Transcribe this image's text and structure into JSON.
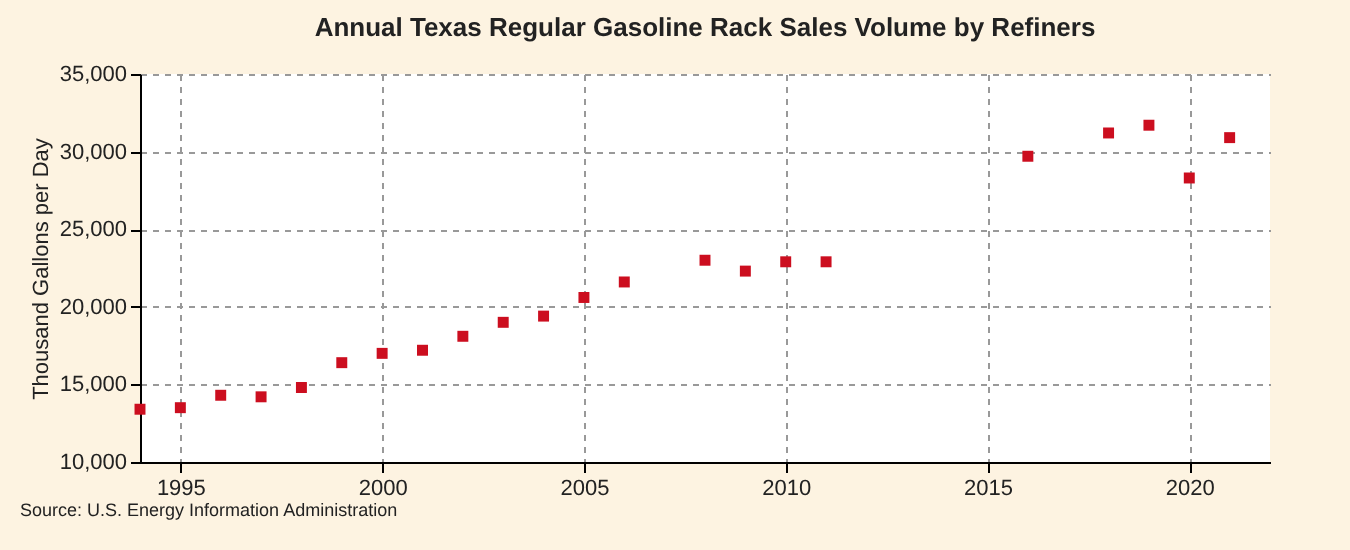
{
  "chart_data": {
    "type": "scatter",
    "title": "Annual Texas Regular Gasoline Rack Sales Volume by Refiners",
    "ylabel": "Thousand Gallons per Day",
    "x": [
      1994,
      1995,
      1996,
      1997,
      1998,
      1999,
      2000,
      2001,
      2002,
      2003,
      2004,
      2005,
      2006,
      2008,
      2009,
      2010,
      2011,
      2016,
      2018,
      2019,
      2020,
      2021
    ],
    "series": [
      {
        "color": "#cc0e1f",
        "values": [
          13400,
          13500,
          14300,
          14200,
          14800,
          16400,
          17000,
          17200,
          18100,
          19000,
          19400,
          20600,
          21600,
          23000,
          22300,
          22900,
          22900,
          29700,
          31200,
          31700,
          28300,
          30900
        ]
      }
    ],
    "xlim": [
      1994,
      2022
    ],
    "xticks": [
      1995,
      2000,
      2005,
      2010,
      2015,
      2020
    ],
    "ylim": [
      10000,
      35000
    ],
    "yticks": [
      {
        "value": 10000,
        "label": "10,000"
      },
      {
        "value": 15000,
        "label": "15,000"
      },
      {
        "value": 20000,
        "label": "20,000"
      },
      {
        "value": 25000,
        "label": "25,000"
      },
      {
        "value": 30000,
        "label": "30,000"
      },
      {
        "value": 35000,
        "label": "35,000"
      }
    ],
    "grid": true,
    "marker": "square",
    "legend": false,
    "annotations": [
      "Source: U.S. Energy Information Administration"
    ]
  }
}
